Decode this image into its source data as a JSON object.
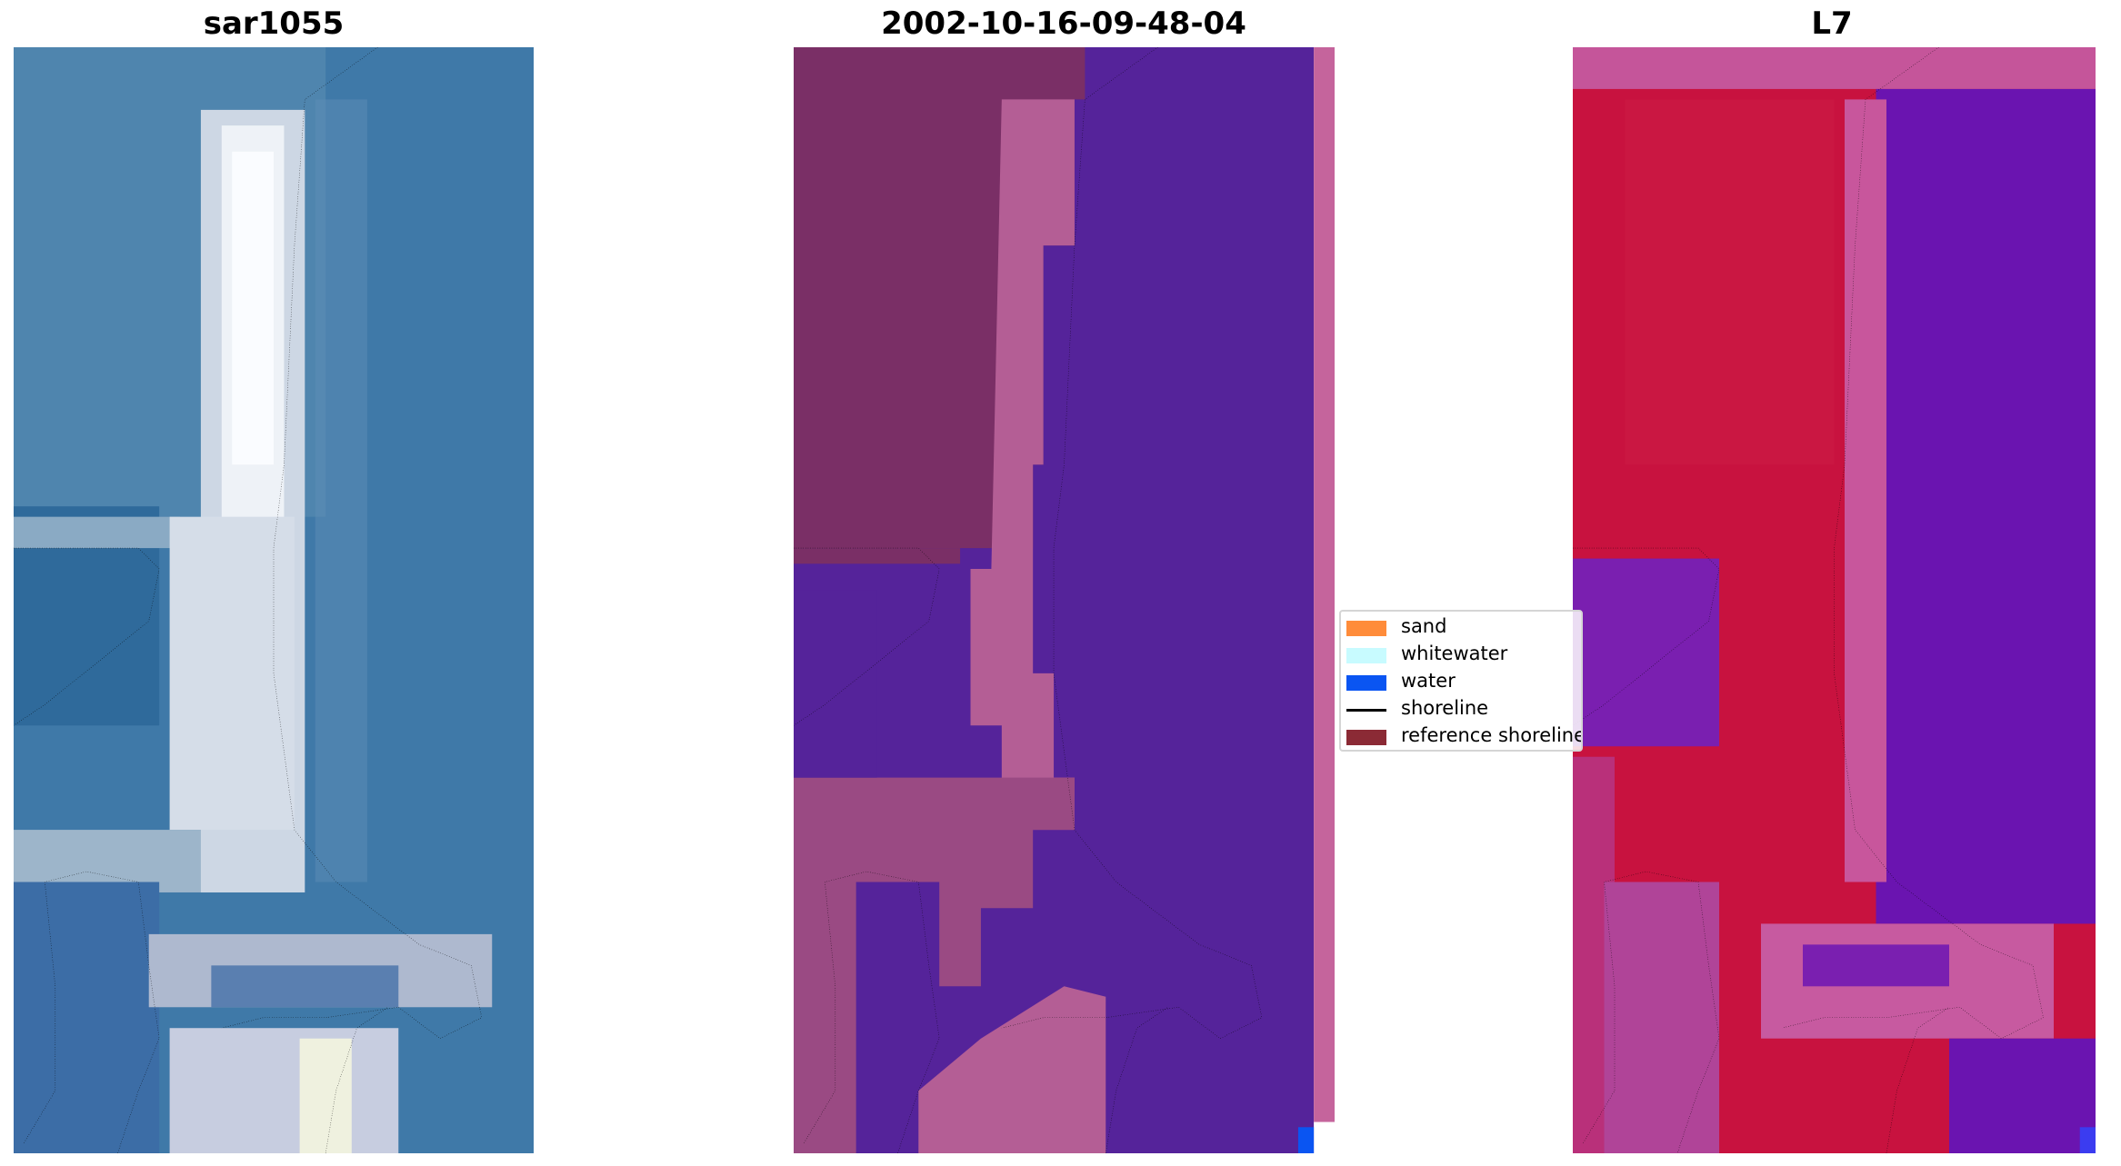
{
  "panels": [
    {
      "title": "sar1055",
      "style": "rgb"
    },
    {
      "title": "2002-10-16-09-48-04",
      "style": "classified"
    },
    {
      "title": "L7",
      "style": "index"
    }
  ],
  "legend": {
    "items": [
      {
        "label": "sand",
        "color": "#ff8c3a",
        "kind": "patch"
      },
      {
        "label": "whitewater",
        "color": "#c8fbff",
        "kind": "patch"
      },
      {
        "label": "water",
        "color": "#0a55f2",
        "kind": "patch"
      },
      {
        "label": "shoreline",
        "color": "#000000",
        "kind": "line"
      },
      {
        "label": "reference shoreline",
        "color": "#8b2a35",
        "kind": "patch"
      }
    ]
  },
  "colors": {
    "rgb_water": "#3f79a8",
    "rgb_land": "#cfd8e4",
    "rgb_land_bright": "#f4f7fb",
    "class_water": "#55239a",
    "class_land": "#b45e95",
    "class_land_dark": "#7a2f66",
    "index_land": "#c8123f",
    "index_water": "#6a14b0",
    "index_mix": "#c8569c",
    "shoreline": "#000000"
  }
}
